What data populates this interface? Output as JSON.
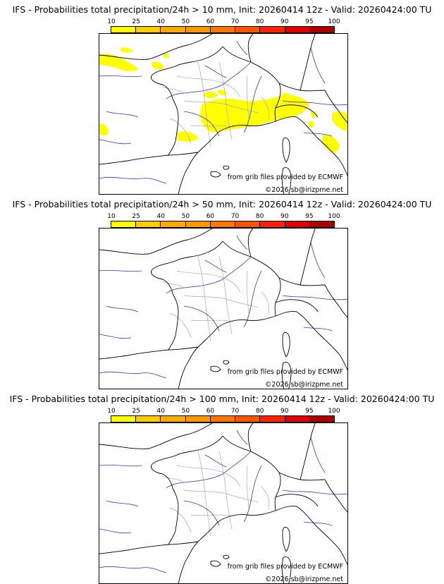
{
  "panels": [
    {
      "title": "IFS - Probabilities total precipitation/24h > 10 mm, Init: 20260414 12z - Valid: 20260424:00 TU",
      "precip_areas": "yes"
    },
    {
      "title": "IFS - Probabilities total precipitation/24h > 50 mm, Init: 20260414 12z - Valid: 20260424:00 TU",
      "precip_areas": "no"
    },
    {
      "title": "IFS - Probabilities total precipitation/24h > 100 mm, Init: 20260414 12z - Valid: 20260424:00 TU",
      "precip_areas": "no"
    }
  ],
  "colorbar": {
    "labels": [
      "10",
      "25",
      "40",
      "50",
      "60",
      "70",
      "80",
      "90",
      "95",
      "100"
    ],
    "colors": [
      "#ffff00",
      "#ffcc00",
      "#ffaa00",
      "#ff9900",
      "#ff7700",
      "#ff5500",
      "#ff2200",
      "#dd0000",
      "#aa0000",
      "#660000"
    ]
  },
  "credits": {
    "source": "from grib files provided by ECMWF",
    "copyright": "©2026 sb@irizpme.net"
  },
  "map_colors": {
    "coast": "#000000",
    "rivers": "#3333dd",
    "regions": "#aaaaaa",
    "precip": "#ffff00"
  }
}
